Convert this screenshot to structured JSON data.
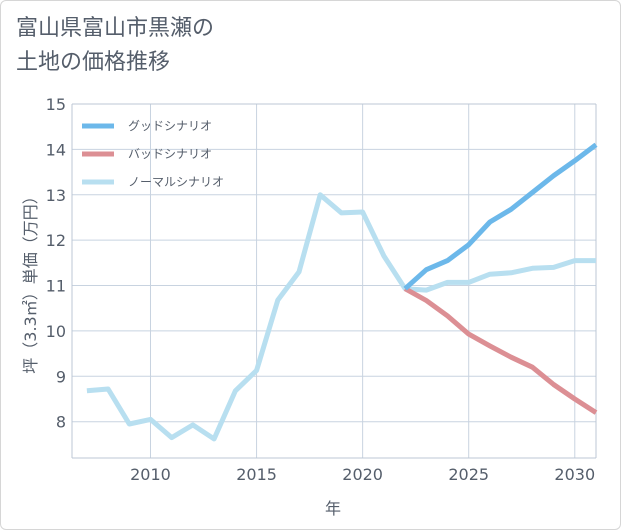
{
  "chart_data": {
    "type": "line",
    "title": "富山県富山市黒瀬の\n土地の価格推移",
    "xlabel": "年",
    "ylabel": "坪（3.3㎡）単価（万円）",
    "xlim": [
      2006.3,
      2031
    ],
    "ylim": [
      7.2,
      15
    ],
    "x_ticks": [
      "2010",
      "2015",
      "2020",
      "2025",
      "2030"
    ],
    "y_ticks": [
      "8",
      "9",
      "10",
      "11",
      "12",
      "13",
      "14",
      "15"
    ],
    "grid": true,
    "legend_position": "top-left",
    "series": [
      {
        "name": "グッドシナリオ",
        "color": "#6cb8ea",
        "x": [
          2022,
          2023,
          2024,
          2025,
          2026,
          2027,
          2028,
          2029,
          2030,
          2031
        ],
        "values": [
          10.93,
          11.35,
          11.55,
          11.9,
          12.4,
          12.68,
          13.05,
          13.42,
          13.75,
          14.1
        ]
      },
      {
        "name": "バッドシナリオ",
        "color": "#dc8f94",
        "x": [
          2022,
          2023,
          2024,
          2025,
          2026,
          2027,
          2028,
          2029,
          2030,
          2031
        ],
        "values": [
          10.93,
          10.67,
          10.33,
          9.93,
          9.67,
          9.42,
          9.2,
          8.82,
          8.5,
          8.2
        ]
      },
      {
        "name": "ノーマルシナリオ",
        "color": "#b8dff0",
        "x": [
          2007,
          2008,
          2009,
          2010,
          2011,
          2012,
          2013,
          2014,
          2015,
          2016,
          2017,
          2018,
          2019,
          2020,
          2021,
          2022,
          2023,
          2024,
          2025,
          2026,
          2027,
          2028,
          2029,
          2030,
          2031
        ],
        "values": [
          8.68,
          8.72,
          7.95,
          8.05,
          7.65,
          7.93,
          7.62,
          8.68,
          9.13,
          10.68,
          11.3,
          13.0,
          12.6,
          12.62,
          11.65,
          10.93,
          10.9,
          11.07,
          11.07,
          11.25,
          11.28,
          11.38,
          11.4,
          11.55,
          11.55
        ]
      }
    ]
  }
}
